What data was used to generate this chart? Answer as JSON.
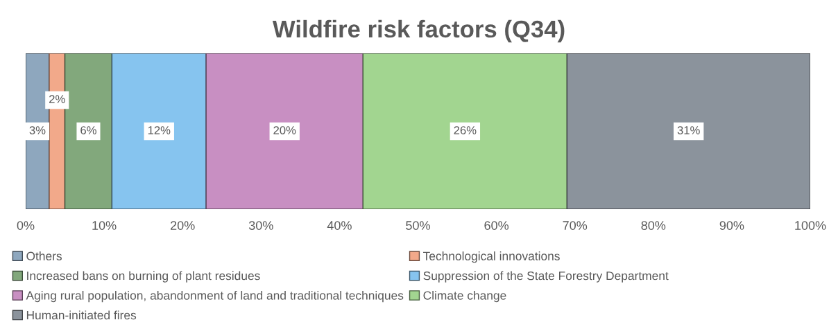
{
  "chart_data": {
    "type": "bar",
    "title": "Wildfire risk factors (Q34)",
    "orientation": "horizontal",
    "stacked": true,
    "categories": [
      null
    ],
    "tick_labels": "x",
    "legend": "bottom",
    "xlim": [
      0,
      100
    ],
    "xticks": [
      {
        "value": 0,
        "label": "0%"
      },
      {
        "value": 10,
        "label": "10%"
      },
      {
        "value": 20,
        "label": "20%"
      },
      {
        "value": 30,
        "label": "30%"
      },
      {
        "value": 40,
        "label": "40%"
      },
      {
        "value": 50,
        "label": "50%"
      },
      {
        "value": 60,
        "label": "60%"
      },
      {
        "value": 70,
        "label": "70%"
      },
      {
        "value": 80,
        "label": "80%"
      },
      {
        "value": 90,
        "label": "90%"
      },
      {
        "value": 100,
        "label": "100%"
      }
    ],
    "series": [
      {
        "name": "Others",
        "color": "#8ea7be",
        "values": [
          3
        ],
        "value_labels": [
          "3%"
        ]
      },
      {
        "name": "Technological innovations",
        "color": "#f2a98a",
        "values": [
          2
        ],
        "value_labels": [
          "2%"
        ]
      },
      {
        "name": "Increased bans on burning of plant residues",
        "color": "#82a87c",
        "values": [
          6
        ],
        "value_labels": [
          "6%"
        ]
      },
      {
        "name": "Suppression of the State Forestry Department",
        "color": "#86c4ef",
        "values": [
          12
        ],
        "value_labels": [
          "12%"
        ]
      },
      {
        "name": "Aging rural population, abandonment of land and traditional techniques",
        "color": "#c88fc2",
        "values": [
          20
        ],
        "value_labels": [
          "20%"
        ]
      },
      {
        "name": "Climate change",
        "color": "#a2d590",
        "values": [
          26
        ],
        "value_labels": [
          "26%"
        ]
      },
      {
        "name": "Human-initiated fires",
        "color": "#8b939c",
        "values": [
          31
        ],
        "value_labels": [
          "31%"
        ]
      }
    ]
  }
}
